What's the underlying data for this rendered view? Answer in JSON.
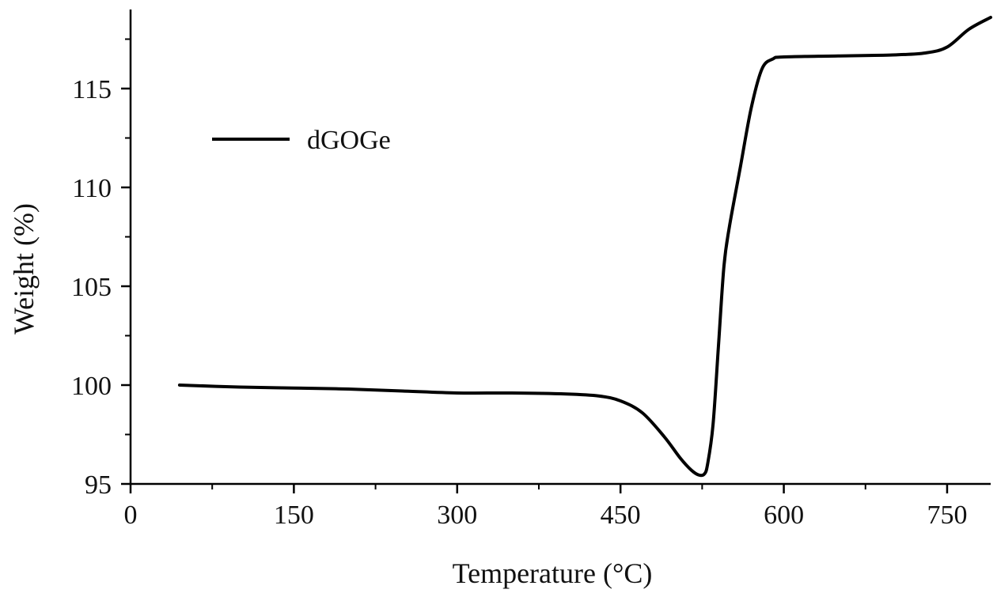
{
  "chart_data": {
    "type": "line",
    "title": "",
    "xlabel": "Temperature (°C)",
    "ylabel": "Weight (%)",
    "xlim": [
      0,
      790
    ],
    "ylim": [
      95,
      119
    ],
    "x_ticks": [
      0,
      150,
      300,
      450,
      600,
      750
    ],
    "x_tick_labels": [
      "0",
      "150",
      "300",
      "450",
      "600",
      "750"
    ],
    "y_ticks": [
      95,
      100,
      105,
      110,
      115
    ],
    "y_tick_labels": [
      "95",
      "100",
      "105",
      "110",
      "115"
    ],
    "legend_position": "top-left",
    "series": [
      {
        "name": "dGOGe",
        "color": "#000000",
        "x": [
          45,
          100,
          150,
          200,
          250,
          300,
          350,
          400,
          430,
          450,
          470,
          490,
          505,
          515,
          522,
          527,
          530,
          535,
          540,
          545,
          550,
          560,
          570,
          580,
          590,
          600,
          650,
          700,
          730,
          750,
          770,
          790
        ],
        "y": [
          100.0,
          99.9,
          99.85,
          99.8,
          99.7,
          99.6,
          99.6,
          99.55,
          99.45,
          99.2,
          98.6,
          97.4,
          96.3,
          95.7,
          95.45,
          95.5,
          96.0,
          98.0,
          102.0,
          106.0,
          108.0,
          111.0,
          114.0,
          116.0,
          116.5,
          116.6,
          116.65,
          116.7,
          116.8,
          117.1,
          118.0,
          118.6
        ]
      }
    ]
  }
}
